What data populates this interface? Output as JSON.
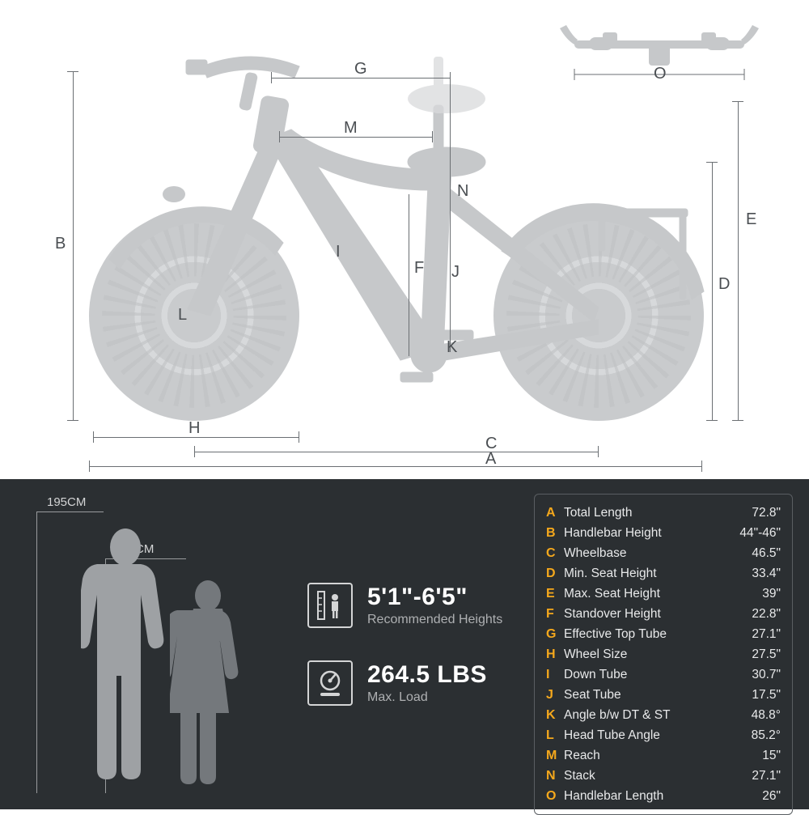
{
  "colors": {
    "bg_top": "#ffffff",
    "bg_bottom": "#2b2f32",
    "bike_silhouette": "#c6c8ca",
    "bike_silhouette_light": "#d7d9db",
    "dim_line": "#6b6f73",
    "dim_label": "#4a4e52",
    "accent": "#f5a81c",
    "text_light": "#e8e9ea",
    "text_muted": "#aeb0b2",
    "person_male": "#9ea1a4",
    "person_female": "#74787c",
    "table_border": "#5a5e62"
  },
  "diagram_labels": {
    "A": "A",
    "B": "B",
    "C": "C",
    "D": "D",
    "E": "E",
    "F": "F",
    "G": "G",
    "H": "H",
    "I": "I",
    "J": "J",
    "K": "K",
    "L": "L",
    "M": "M",
    "N": "N",
    "O": "O"
  },
  "people": {
    "tall_label": "195CM",
    "short_label": "155CM"
  },
  "info": {
    "height_range": "5'1\"-6'5\"",
    "height_sub": "Recommended Heights",
    "load_value": "264.5 LBS",
    "load_sub": "Max. Load"
  },
  "specs": [
    {
      "letter": "A",
      "name": "Total Length",
      "value": "72.8\""
    },
    {
      "letter": "B",
      "name": "Handlebar Height",
      "value": "44\"-46\""
    },
    {
      "letter": "C",
      "name": "Wheelbase",
      "value": "46.5\""
    },
    {
      "letter": "D",
      "name": "Min. Seat Height",
      "value": "33.4\""
    },
    {
      "letter": "E",
      "name": "Max. Seat Height",
      "value": "39\""
    },
    {
      "letter": "F",
      "name": "Standover Height",
      "value": "22.8\""
    },
    {
      "letter": "G",
      "name": "Effective Top Tube",
      "value": "27.1\""
    },
    {
      "letter": "H",
      "name": "Wheel Size",
      "value": "27.5\""
    },
    {
      "letter": "I",
      "name": "Down Tube",
      "value": "30.7\""
    },
    {
      "letter": "J",
      "name": "Seat Tube",
      "value": "17.5\""
    },
    {
      "letter": "K",
      "name": "Angle b/w DT & ST",
      "value": "48.8°"
    },
    {
      "letter": "L",
      "name": "Head Tube Angle",
      "value": "85.2°"
    },
    {
      "letter": "M",
      "name": "Reach",
      "value": "15\""
    },
    {
      "letter": "N",
      "name": "Stack",
      "value": "27.1\""
    },
    {
      "letter": "O",
      "name": "Handlebar Length",
      "value": "26\""
    }
  ]
}
